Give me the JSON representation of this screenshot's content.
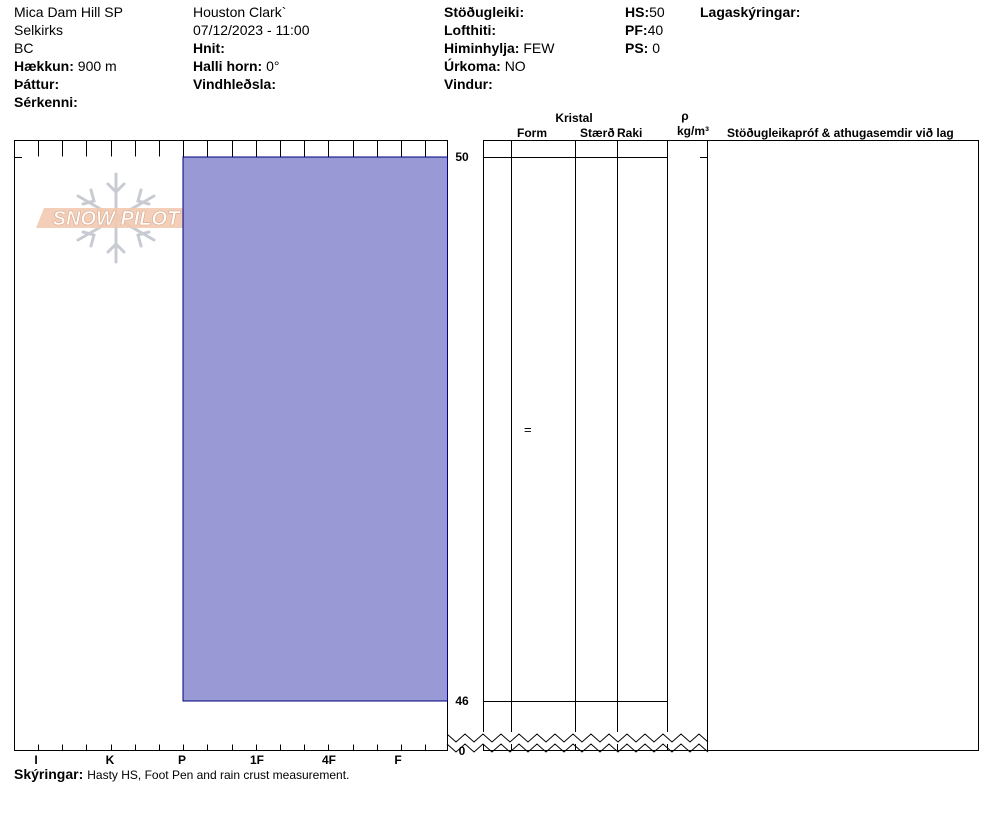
{
  "header": {
    "location": "Mica Dam Hill SP",
    "range": "Selkirks",
    "province": "BC",
    "elevation_label": "Hækkun:",
    "elevation_value": "900 m",
    "aspect_label": "Þáttur:",
    "specifics_label": "Sérkenni:",
    "observer": "Houston Clark`",
    "datetime": "07/12/2023 - 11:00",
    "coords_label": "Hnit:",
    "slope_label": "Halli horn:",
    "slope_value": "0°",
    "wind_loading_label": "Vindhleðsla:",
    "stability_label": "Stöðugleiki:",
    "air_temp_label": "Lofthiti:",
    "sky_label": "Himinhylja:",
    "sky_value": "FEW",
    "precip_label": "Úrkoma:",
    "precip_value": "NO",
    "wind_label": "Vindur:",
    "hs_label": "HS:",
    "hs_value": "50",
    "pf_label": "PF:",
    "pf_value": "40",
    "ps_label": "PS:",
    "ps_value": "0",
    "layer_notes_label": "Lagaskýringar:"
  },
  "logo": {
    "text": "SNOW PILOT"
  },
  "columns": {
    "crystal": "Kristal",
    "form": "Form",
    "size": "Stærð",
    "moisture": "Raki",
    "density_symbol": "ρ",
    "density_unit": "kg/m³",
    "stability_tests": "Stöðugleikapróf & athugasemdir við lag"
  },
  "notes": {
    "label": "Skýringar:",
    "text": "Hasty HS, Foot Pen and rain crust measurement."
  },
  "chart_data": {
    "type": "bar",
    "title": "",
    "hardness_axis": [
      "I",
      "K",
      "P",
      "1F",
      "4F",
      "F"
    ],
    "hardness_axis_direction": "reversed",
    "height_ticks": [
      50,
      46,
      0
    ],
    "ylim": [
      0,
      50
    ],
    "layers": [
      {
        "top": 50,
        "bottom": 46,
        "hardness": "P",
        "grain_form_symbol": "=",
        "color": "#9999d6"
      }
    ],
    "axis_break": true
  }
}
